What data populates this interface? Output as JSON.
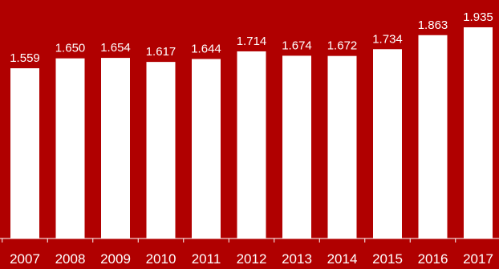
{
  "colors": {
    "background": "#b00000",
    "bar": "#ffffff",
    "text": "#ffffff",
    "axis": "#ffffff"
  },
  "chart_data": {
    "type": "bar",
    "categories": [
      "2007",
      "2008",
      "2009",
      "2010",
      "2011",
      "2012",
      "2013",
      "2014",
      "2015",
      "2016",
      "2017"
    ],
    "values": [
      1.559,
      1.65,
      1.654,
      1.617,
      1.644,
      1.714,
      1.674,
      1.672,
      1.734,
      1.863,
      1.935
    ],
    "value_labels": [
      "1.559",
      "1.650",
      "1.654",
      "1.617",
      "1.644",
      "1.714",
      "1.674",
      "1.672",
      "1.734",
      "1.863",
      "1.935"
    ],
    "grid": false,
    "legend": "none"
  }
}
